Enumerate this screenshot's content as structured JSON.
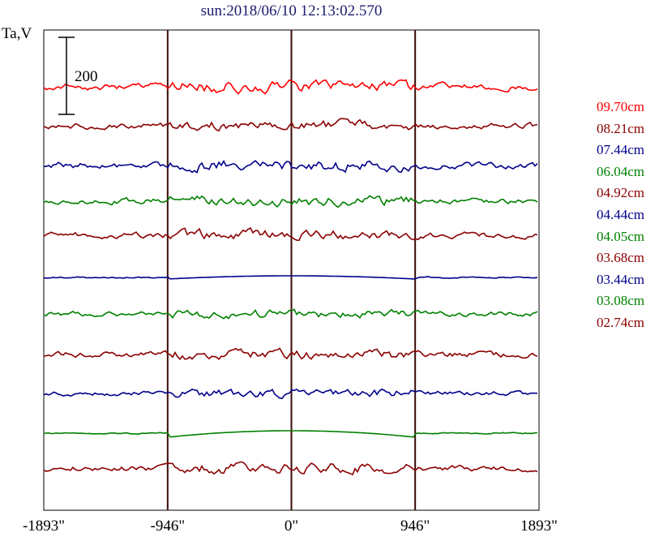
{
  "title": "sun:2018/06/10 12:13:02.570",
  "y_axis_label": "Ta,V",
  "scale_bar_label": "200",
  "chart_data": {
    "type": "line",
    "title": "sun:2018/06/10 12:13:02.570",
    "ylabel": "Ta,V",
    "xlim": [
      -1893,
      1893
    ],
    "x_tick_values": [
      -1893,
      -946,
      0,
      946,
      1893
    ],
    "x_tick_labels": [
      "-1893\"",
      "-946\"",
      "0\"",
      "946\"",
      "1893\""
    ],
    "vertical_lines_at": [
      -946,
      0,
      946
    ],
    "scale_bar_value": 200,
    "grid": false,
    "legend_position": "right",
    "series": [
      {
        "name": "09.70cm",
        "color": "#ff0000"
      },
      {
        "name": "08.21cm",
        "color": "#8b0000"
      },
      {
        "name": "07.44cm",
        "color": "#00008b"
      },
      {
        "name": "06.04cm",
        "color": "#008000"
      },
      {
        "name": "04.92cm",
        "color": "#8b0000"
      },
      {
        "name": "04.44cm",
        "color": "#00008b"
      },
      {
        "name": "04.05cm",
        "color": "#008000"
      },
      {
        "name": "03.68cm",
        "color": "#8b0000"
      },
      {
        "name": "03.44cm",
        "color": "#00008b"
      },
      {
        "name": "03.08cm",
        "color": "#008000"
      },
      {
        "name": "02.74cm",
        "color": "#8b0000"
      }
    ]
  }
}
